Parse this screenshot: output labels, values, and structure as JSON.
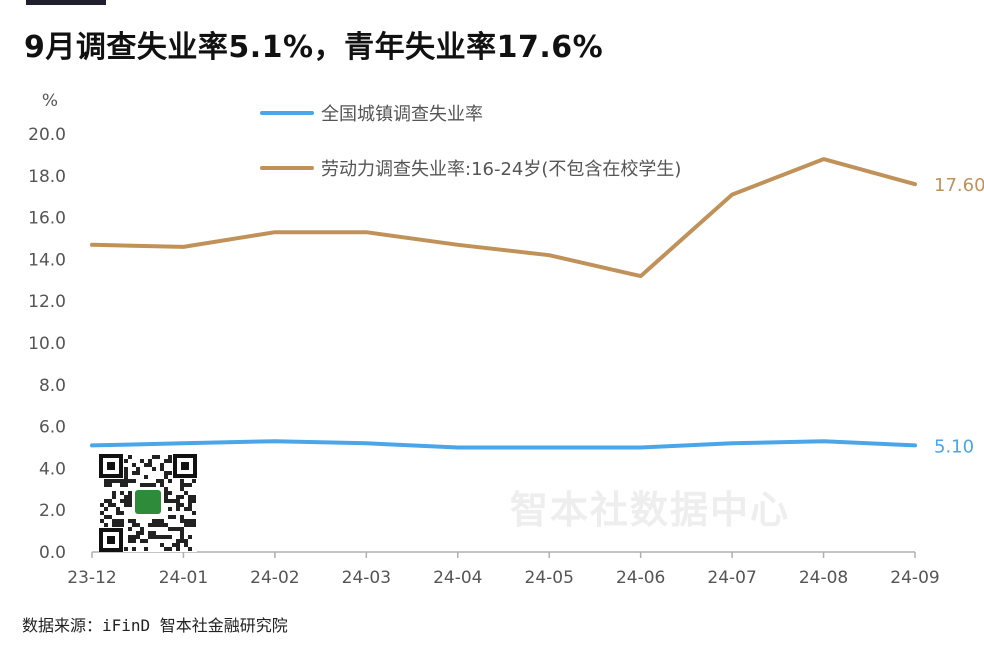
{
  "page": {
    "title": "9月调查失业率5.1%，青年失业率17.6%",
    "source": "数据来源：iFinD 智本社金融研究院",
    "watermark": "智本社数据中心"
  },
  "colors": {
    "series_blue": "#4aa6e9",
    "series_gold": "#c0925a",
    "qr_accent": "#2e8b3a"
  },
  "icons": {
    "qr": "qr-code-icon"
  },
  "chart_data": {
    "type": "line",
    "ylabel": "%",
    "ylim": [
      0,
      20
    ],
    "yticks": [
      "0.0",
      "2.0",
      "4.0",
      "6.0",
      "8.0",
      "10.0",
      "12.0",
      "14.0",
      "16.0",
      "18.0",
      "20.0"
    ],
    "categories": [
      "23-12",
      "24-01",
      "24-02",
      "24-03",
      "24-04",
      "24-05",
      "24-06",
      "24-07",
      "24-08",
      "24-09"
    ],
    "grid": false,
    "legend_position": "top",
    "series": [
      {
        "name": "全国城镇调查失业率",
        "values": [
          5.1,
          5.2,
          5.3,
          5.2,
          5.0,
          5.0,
          5.0,
          5.2,
          5.3,
          5.1
        ],
        "end_label": "5.10"
      },
      {
        "name": "劳动力调查失业率:16-24岁(不包含在校学生)",
        "values": [
          14.7,
          14.6,
          15.3,
          15.3,
          14.7,
          14.2,
          13.2,
          17.1,
          18.8,
          17.6
        ],
        "end_label": "17.60"
      }
    ]
  }
}
